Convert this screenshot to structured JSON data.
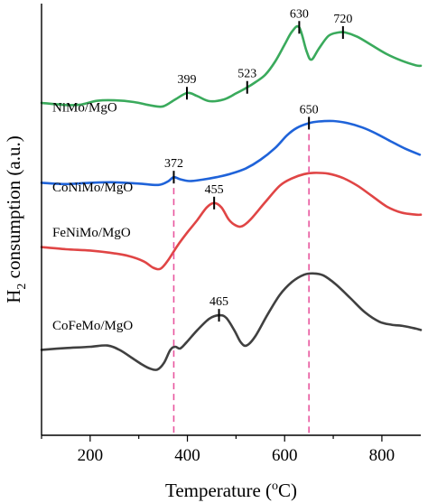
{
  "chart_data": {
    "type": "line",
    "title": "",
    "xlabel": "Temperature (",
    "xlabel_sup": "o",
    "xlabel_tail": "C)",
    "ylabel": "H",
    "ylabel_sub": "2",
    "ylabel_tail": " consumption (a.u.)",
    "xlim": [
      100,
      880
    ],
    "xticks": [
      200,
      400,
      600,
      800
    ],
    "xtick_labels": [
      "200",
      "400",
      "600",
      "800"
    ],
    "ylim": [
      0,
      100
    ],
    "reference_lines": [
      {
        "x": 372,
        "color": "#e8569e"
      },
      {
        "x": 650,
        "color": "#e8569e"
      }
    ],
    "series": [
      {
        "name": "NiMo/MgO",
        "color": "#3aaa5c",
        "label_at": [
          58,
          75
        ],
        "points": [
          [
            100,
            77
          ],
          [
            150,
            76.5
          ],
          [
            180,
            76.6
          ],
          [
            215,
            77.5
          ],
          [
            250,
            77.6
          ],
          [
            290,
            77.2
          ],
          [
            325,
            76.4
          ],
          [
            350,
            76.2
          ],
          [
            375,
            77.8
          ],
          [
            400,
            79.3
          ],
          [
            420,
            78.6
          ],
          [
            445,
            77.4
          ],
          [
            475,
            77.8
          ],
          [
            500,
            79.2
          ],
          [
            523,
            80.6
          ],
          [
            540,
            81.8
          ],
          [
            560,
            83.5
          ],
          [
            580,
            86.5
          ],
          [
            600,
            90.5
          ],
          [
            615,
            93.5
          ],
          [
            630,
            94.5
          ],
          [
            645,
            89
          ],
          [
            655,
            87
          ],
          [
            670,
            89.5
          ],
          [
            690,
            92.5
          ],
          [
            710,
            93.3
          ],
          [
            725,
            93.3
          ],
          [
            750,
            92.3
          ],
          [
            780,
            90.3
          ],
          [
            810,
            88.3
          ],
          [
            840,
            86.8
          ],
          [
            870,
            85.7
          ],
          [
            880,
            85.6
          ]
        ],
        "peaks": [
          {
            "x": 399,
            "label": "399"
          },
          {
            "x": 523,
            "label": "523"
          },
          {
            "x": 630,
            "label": "630"
          },
          {
            "x": 720,
            "label": "720"
          }
        ]
      },
      {
        "name": "CoNiMo/MgO",
        "color": "#1f63d9",
        "label_at": [
          50,
          56.5
        ],
        "points": [
          [
            100,
            58.5
          ],
          [
            150,
            58.2
          ],
          [
            200,
            58.5
          ],
          [
            250,
            58.6
          ],
          [
            300,
            58.3
          ],
          [
            340,
            58
          ],
          [
            360,
            58.8
          ],
          [
            372,
            59.8
          ],
          [
            385,
            59.3
          ],
          [
            405,
            58.9
          ],
          [
            430,
            59.2
          ],
          [
            460,
            59.8
          ],
          [
            490,
            60.6
          ],
          [
            520,
            61.8
          ],
          [
            550,
            63.8
          ],
          [
            580,
            66.5
          ],
          [
            605,
            69.5
          ],
          [
            625,
            71.2
          ],
          [
            650,
            72.3
          ],
          [
            670,
            72.7
          ],
          [
            700,
            72.8
          ],
          [
            730,
            72.3
          ],
          [
            760,
            71.3
          ],
          [
            790,
            69.8
          ],
          [
            820,
            68
          ],
          [
            850,
            66.3
          ],
          [
            878,
            65
          ]
        ],
        "peaks": [
          {
            "x": 372,
            "label": "372"
          },
          {
            "x": 650,
            "label": "650"
          }
        ]
      },
      {
        "name": "FeNiMo/MgO",
        "color": "#e04545",
        "label_at": [
          57,
          46
        ],
        "points": [
          [
            100,
            43.6
          ],
          [
            150,
            43.1
          ],
          [
            200,
            42.8
          ],
          [
            240,
            42.3
          ],
          [
            280,
            41.5
          ],
          [
            310,
            40.3
          ],
          [
            330,
            38.8
          ],
          [
            345,
            38.6
          ],
          [
            360,
            40.5
          ],
          [
            380,
            44
          ],
          [
            400,
            47
          ],
          [
            420,
            49.8
          ],
          [
            440,
            52.8
          ],
          [
            455,
            53.8
          ],
          [
            470,
            52.8
          ],
          [
            485,
            50
          ],
          [
            498,
            48.7
          ],
          [
            512,
            48.4
          ],
          [
            530,
            50
          ],
          [
            560,
            54
          ],
          [
            590,
            57.8
          ],
          [
            615,
            59.5
          ],
          [
            640,
            60.5
          ],
          [
            660,
            60.8
          ],
          [
            690,
            60.6
          ],
          [
            720,
            59.6
          ],
          [
            750,
            57.8
          ],
          [
            780,
            55.4
          ],
          [
            810,
            53
          ],
          [
            840,
            51.6
          ],
          [
            870,
            51.1
          ],
          [
            880,
            51.1
          ]
        ],
        "peaks": [
          {
            "x": 455,
            "label": "455"
          }
        ]
      },
      {
        "name": "CoFeMo/MgO",
        "color": "#404040",
        "label_at": [
          50,
          24.5
        ],
        "points": [
          [
            100,
            19.8
          ],
          [
            150,
            20.2
          ],
          [
            200,
            20.5
          ],
          [
            235,
            20.8
          ],
          [
            260,
            19.8
          ],
          [
            285,
            18
          ],
          [
            305,
            16.5
          ],
          [
            322,
            15.5
          ],
          [
            338,
            15.2
          ],
          [
            352,
            16.8
          ],
          [
            365,
            19.8
          ],
          [
            375,
            20.5
          ],
          [
            385,
            20.1
          ],
          [
            398,
            21.5
          ],
          [
            420,
            24.3
          ],
          [
            445,
            27
          ],
          [
            465,
            27.8
          ],
          [
            480,
            27.2
          ],
          [
            497,
            24.2
          ],
          [
            510,
            21.5
          ],
          [
            522,
            20.8
          ],
          [
            540,
            23
          ],
          [
            565,
            28
          ],
          [
            590,
            32.5
          ],
          [
            615,
            35.5
          ],
          [
            640,
            37.2
          ],
          [
            660,
            37.5
          ],
          [
            680,
            37
          ],
          [
            705,
            35
          ],
          [
            735,
            31.8
          ],
          [
            765,
            28.5
          ],
          [
            795,
            26.3
          ],
          [
            820,
            25.6
          ],
          [
            845,
            25.3
          ],
          [
            870,
            24.7
          ],
          [
            880,
            24.4
          ]
        ],
        "peaks": [
          {
            "x": 465,
            "label": "465"
          }
        ]
      }
    ]
  }
}
